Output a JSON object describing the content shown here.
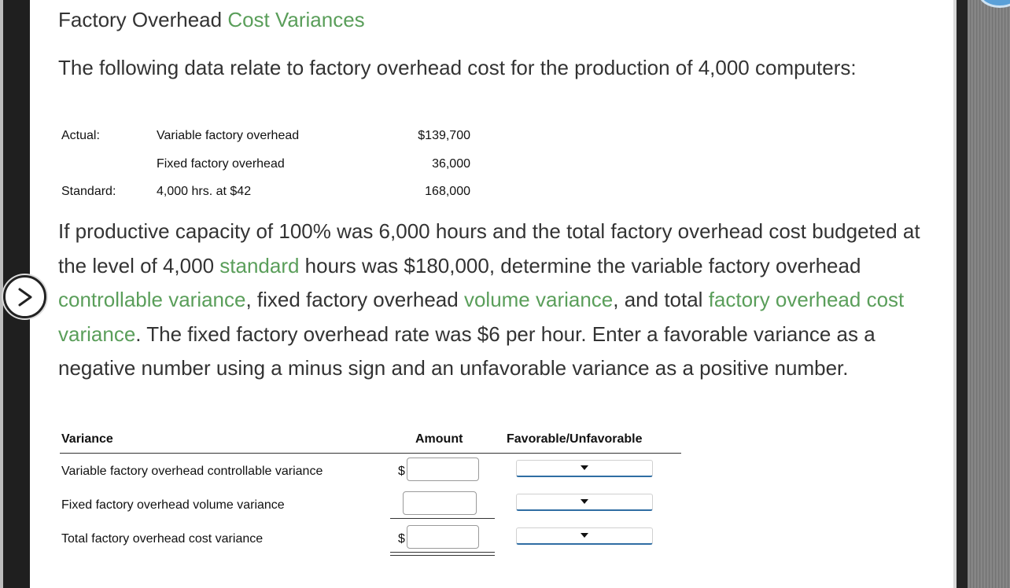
{
  "header": {
    "title_plain": "Factory Overhead ",
    "title_link": "Cost Variances"
  },
  "intro": "The following data relate to factory overhead cost for the production of 4,000 computers:",
  "given_data": [
    {
      "category": "Actual:",
      "item": "Variable factory overhead",
      "amount": "$139,700"
    },
    {
      "category": "",
      "item": "Fixed factory overhead",
      "amount": "36,000"
    },
    {
      "category": "Standard:",
      "item": "4,000 hrs. at $42",
      "amount": "168,000"
    }
  ],
  "question": {
    "p1": "If productive capacity of 100% was 6,000 hours and the total factory overhead cost budgeted at the level of 4,000 ",
    "link1": "standard",
    "p2": " hours was $180,000, determine the variable factory overhead ",
    "link2": "controllable variance",
    "p3": ", fixed factory overhead ",
    "link3": "volume variance",
    "p4": ", and total ",
    "link4": "factory overhead cost variance",
    "p5": ". The fixed factory overhead rate was $6 per hour. Enter a favorable variance as a negative number using a minus sign and an unfavorable variance as a positive number."
  },
  "answer_table": {
    "headers": {
      "variance": "Variance",
      "amount": "Amount",
      "fav_unfav": "Favorable/Unfavorable"
    },
    "rows": [
      {
        "label": "Variable factory overhead controllable variance",
        "currency": "$",
        "amount_value": "",
        "selected": ""
      },
      {
        "label": "Fixed factory overhead volume variance",
        "currency": "",
        "amount_value": "",
        "selected": ""
      },
      {
        "label": "Total factory overhead cost variance",
        "currency": "$",
        "amount_value": "",
        "selected": ""
      }
    ]
  },
  "icons": {
    "nav": "chevron-right-icon"
  },
  "colors": {
    "link": "#5a9e5a",
    "select_underline": "#2f6da3",
    "text": "#333333"
  }
}
